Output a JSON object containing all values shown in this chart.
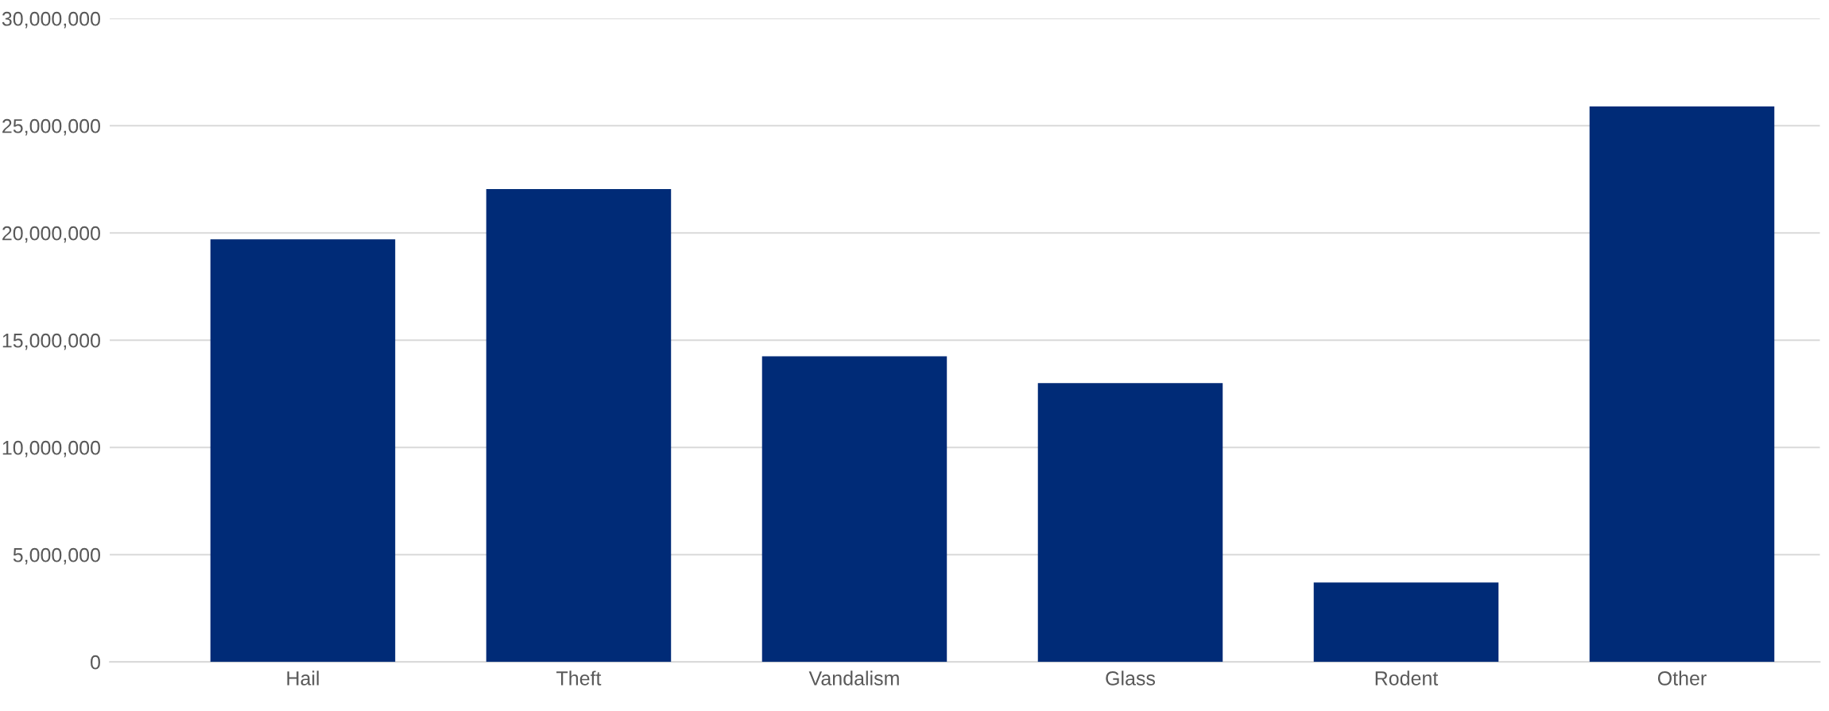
{
  "chart_data": {
    "type": "bar",
    "categories": [
      "Hail",
      "Theft",
      "Vandalism",
      "Glass",
      "Rodent",
      "Other"
    ],
    "values": [
      19700000,
      22050000,
      14250000,
      13000000,
      3700000,
      25900000
    ],
    "color": "#002b77",
    "ylim": [
      0,
      30000000
    ],
    "yticks": [
      {
        "value": 0,
        "label": "0"
      },
      {
        "value": 5000000,
        "label": "5,000,000"
      },
      {
        "value": 10000000,
        "label": "10,000,000"
      },
      {
        "value": 15000000,
        "label": "15,000,000"
      },
      {
        "value": 20000000,
        "label": "20,000,000"
      },
      {
        "value": 25000000,
        "label": "25,000,000"
      },
      {
        "value": 30000000,
        "label": "30,000,000"
      }
    ],
    "grid": "y",
    "legend": false
  }
}
